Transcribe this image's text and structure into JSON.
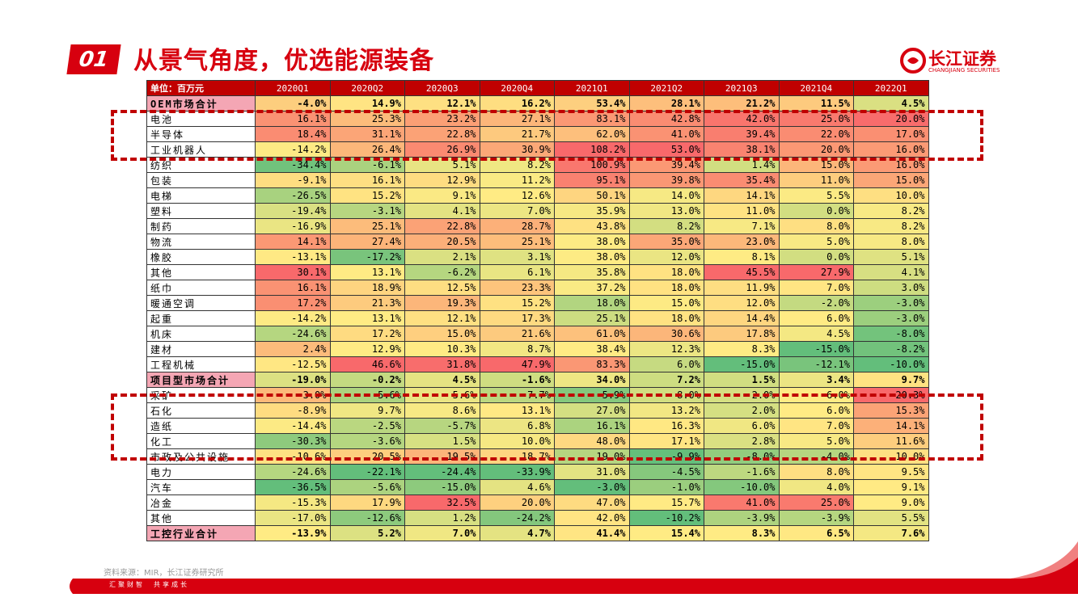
{
  "header": {
    "number": "01",
    "title": "从景气角度，优选能源装备",
    "logo_name": "长江证券",
    "logo_sub": "CHANGJIANG SECURITIES"
  },
  "table": {
    "columns": [
      "单位：百万元",
      "2020Q1",
      "2020Q2",
      "2020Q3",
      "2020Q4",
      "2021Q1",
      "2021Q2",
      "2021Q3",
      "2021Q4",
      "2022Q1"
    ],
    "rows": [
      {
        "label": "OEM市场合计",
        "values": [
          "-4.0%",
          "14.9%",
          "12.1%",
          "16.2%",
          "53.4%",
          "28.1%",
          "21.2%",
          "11.5%",
          "4.5%"
        ]
      },
      {
        "label": "电池",
        "values": [
          "16.1%",
          "25.3%",
          "23.2%",
          "27.1%",
          "83.1%",
          "42.8%",
          "42.0%",
          "25.0%",
          "20.0%"
        ]
      },
      {
        "label": "半导体",
        "values": [
          "18.4%",
          "31.1%",
          "22.8%",
          "21.7%",
          "62.0%",
          "41.0%",
          "39.4%",
          "22.0%",
          "17.0%"
        ]
      },
      {
        "label": "工业机器人",
        "values": [
          "-14.2%",
          "26.4%",
          "26.9%",
          "30.9%",
          "108.2%",
          "53.0%",
          "38.1%",
          "20.0%",
          "16.0%"
        ]
      },
      {
        "label": "纺织",
        "values": [
          "-34.4%",
          "-6.1%",
          "5.1%",
          "8.2%",
          "100.9%",
          "39.4%",
          "1.4%",
          "15.0%",
          "16.0%"
        ]
      },
      {
        "label": "包装",
        "values": [
          "-9.1%",
          "16.1%",
          "12.9%",
          "11.2%",
          "95.1%",
          "39.8%",
          "35.4%",
          "11.0%",
          "15.0%"
        ]
      },
      {
        "label": "电梯",
        "values": [
          "-26.5%",
          "15.2%",
          "9.1%",
          "12.6%",
          "50.1%",
          "14.0%",
          "14.1%",
          "5.5%",
          "10.0%"
        ]
      },
      {
        "label": "塑料",
        "values": [
          "-19.4%",
          "-3.1%",
          "4.1%",
          "7.0%",
          "35.9%",
          "13.0%",
          "11.0%",
          "0.0%",
          "8.2%"
        ]
      },
      {
        "label": "制药",
        "values": [
          "-16.9%",
          "25.1%",
          "22.8%",
          "28.7%",
          "43.8%",
          "8.2%",
          "7.1%",
          "8.0%",
          "8.2%"
        ]
      },
      {
        "label": "物流",
        "values": [
          "14.1%",
          "27.4%",
          "20.5%",
          "25.1%",
          "38.0%",
          "35.0%",
          "23.0%",
          "5.0%",
          "8.0%"
        ]
      },
      {
        "label": "橡胶",
        "values": [
          "-13.1%",
          "-17.2%",
          "2.1%",
          "3.1%",
          "38.0%",
          "12.0%",
          "8.1%",
          "0.0%",
          "5.1%"
        ]
      },
      {
        "label": "其他",
        "values": [
          "30.1%",
          "13.1%",
          "-6.2%",
          "6.1%",
          "35.8%",
          "18.0%",
          "45.5%",
          "27.9%",
          "4.1%"
        ]
      },
      {
        "label": "纸巾",
        "values": [
          "16.1%",
          "18.9%",
          "12.5%",
          "23.3%",
          "37.2%",
          "18.0%",
          "11.9%",
          "7.0%",
          "3.0%"
        ]
      },
      {
        "label": "暖通空调",
        "values": [
          "17.2%",
          "21.3%",
          "19.3%",
          "15.2%",
          "18.0%",
          "15.0%",
          "12.0%",
          "-2.0%",
          "-3.0%"
        ]
      },
      {
        "label": "起重",
        "values": [
          "-14.2%",
          "13.1%",
          "12.1%",
          "17.3%",
          "25.1%",
          "18.0%",
          "14.4%",
          "6.0%",
          "-3.0%"
        ]
      },
      {
        "label": "机床",
        "values": [
          "-24.6%",
          "17.2%",
          "15.0%",
          "21.6%",
          "61.0%",
          "30.6%",
          "17.8%",
          "4.5%",
          "-8.0%"
        ]
      },
      {
        "label": "建材",
        "values": [
          "2.4%",
          "12.9%",
          "10.3%",
          "8.7%",
          "38.4%",
          "12.3%",
          "8.3%",
          "-15.0%",
          "-8.2%"
        ]
      },
      {
        "label": "工程机械",
        "values": [
          "-12.5%",
          "46.6%",
          "31.8%",
          "47.9%",
          "83.3%",
          "6.0%",
          "-15.0%",
          "-12.1%",
          "-10.0%"
        ]
      },
      {
        "label": "项目型市场合计",
        "values": [
          "-19.0%",
          "-0.2%",
          "4.5%",
          "-1.6%",
          "34.0%",
          "7.2%",
          "1.5%",
          "3.4%",
          "9.7%"
        ]
      },
      {
        "label": "采矿",
        "values": [
          "3.0%",
          "-5.6%",
          "5.6%",
          "-7.7%",
          "5.9%",
          "8.0%",
          "2.0%",
          "6.0%",
          "20.3%"
        ]
      },
      {
        "label": "石化",
        "values": [
          "-8.9%",
          "9.7%",
          "8.6%",
          "13.1%",
          "27.0%",
          "13.2%",
          "2.0%",
          "6.0%",
          "15.3%"
        ]
      },
      {
        "label": "造纸",
        "values": [
          "-14.4%",
          "-2.5%",
          "-5.7%",
          "6.8%",
          "16.1%",
          "16.3%",
          "6.0%",
          "7.0%",
          "14.1%"
        ]
      },
      {
        "label": "化工",
        "values": [
          "-30.3%",
          "-3.6%",
          "1.5%",
          "10.0%",
          "48.0%",
          "17.1%",
          "2.8%",
          "5.0%",
          "11.6%"
        ]
      },
      {
        "label": "市政及公共设施",
        "values": [
          "-10.6%",
          "20.5%",
          "19.5%",
          "18.7%",
          "19.0%",
          "-9.9%",
          "-8.0%",
          "-4.0%",
          "10.0%"
        ]
      },
      {
        "label": "电力",
        "values": [
          "-24.6%",
          "-22.1%",
          "-24.4%",
          "-33.9%",
          "31.0%",
          "-4.5%",
          "-1.6%",
          "8.0%",
          "9.5%"
        ]
      },
      {
        "label": "汽车",
        "values": [
          "-36.5%",
          "-5.6%",
          "-15.0%",
          "4.6%",
          "-3.0%",
          "-1.0%",
          "-10.0%",
          "4.0%",
          "9.1%"
        ]
      },
      {
        "label": "冶金",
        "values": [
          "-15.3%",
          "17.9%",
          "32.5%",
          "20.0%",
          "47.0%",
          "15.7%",
          "41.0%",
          "25.0%",
          "9.0%"
        ]
      },
      {
        "label": "其他",
        "values": [
          "-17.0%",
          "-12.6%",
          "1.2%",
          "-24.2%",
          "42.0%",
          "-10.2%",
          "-3.9%",
          "-3.9%",
          "5.5%"
        ]
      },
      {
        "label": "工控行业合计",
        "values": [
          "-13.9%",
          "5.2%",
          "7.0%",
          "4.7%",
          "41.4%",
          "15.4%",
          "8.3%",
          "6.5%",
          "7.6%"
        ]
      }
    ]
  },
  "footer": {
    "source": "资料来源：MIR，长江证券研究所",
    "slogan": "汇聚财智　共享成长"
  }
}
